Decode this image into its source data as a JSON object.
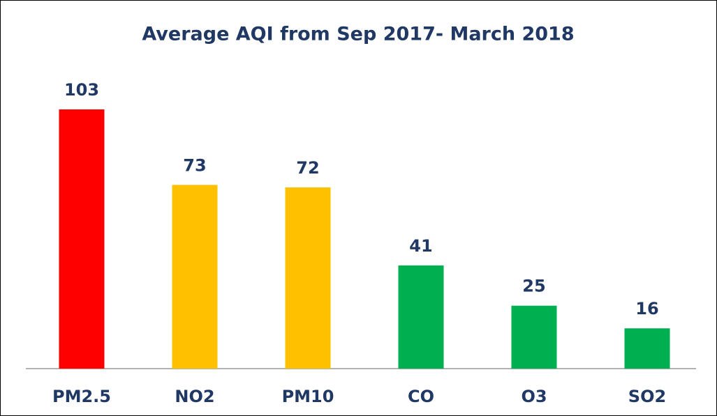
{
  "chart_data": {
    "type": "bar",
    "title": "Average AQI from Sep 2017- March 2018",
    "categories": [
      "PM2.5",
      "NO2",
      "PM10",
      "CO",
      "O3",
      "SO2"
    ],
    "values": [
      103,
      73,
      72,
      41,
      25,
      16
    ],
    "colors": [
      "#ff0000",
      "#ffc000",
      "#ffc000",
      "#00b050",
      "#00b050",
      "#00b050"
    ]
  }
}
